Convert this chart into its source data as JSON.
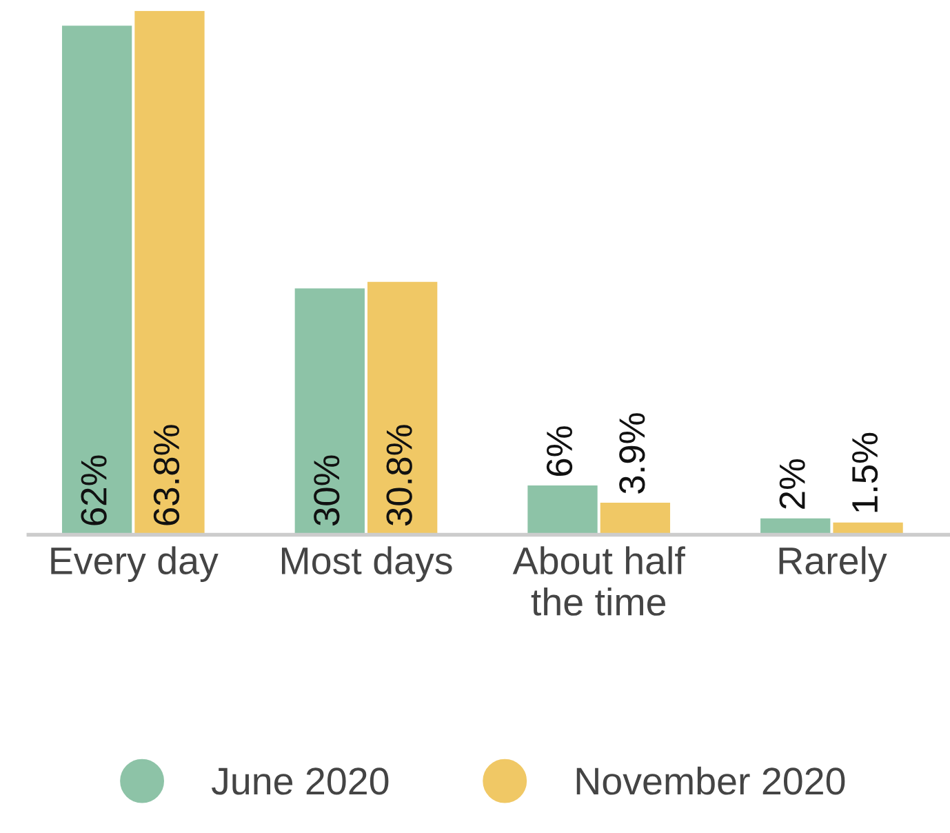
{
  "chart_data": {
    "type": "bar",
    "categories": [
      "Every day",
      "Most days",
      "About half\nthe time",
      "Rarely"
    ],
    "series": [
      {
        "name": "June 2020",
        "color": "#8dc3a7",
        "values": [
          62,
          30,
          6,
          2
        ],
        "value_labels": [
          "62%",
          "30%",
          "6%",
          "2%"
        ]
      },
      {
        "name": "November 2020",
        "color": "#f0c865",
        "values": [
          63.8,
          30.8,
          3.9,
          1.5
        ],
        "value_labels": [
          "63.8%",
          "30.8%",
          "3.9%",
          "1.5%"
        ]
      }
    ],
    "legend": "bottom",
    "grid": false
  }
}
